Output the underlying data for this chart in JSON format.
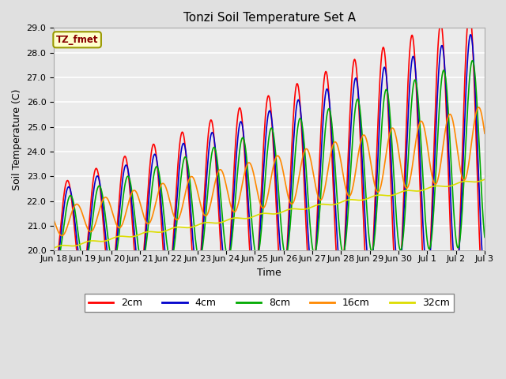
{
  "title": "Tonzi Soil Temperature Set A",
  "xlabel": "Time",
  "ylabel": "Soil Temperature (C)",
  "ylim": [
    20.0,
    29.0
  ],
  "yticks": [
    20.0,
    21.0,
    22.0,
    23.0,
    24.0,
    25.0,
    26.0,
    27.0,
    28.0,
    29.0
  ],
  "xtick_labels": [
    "Jun 18",
    "Jun 19",
    "Jun 20",
    "Jun 21",
    "Jun 22",
    "Jun 23",
    "Jun 24",
    "Jun 25",
    "Jun 26",
    "Jun 27",
    "Jun 28",
    "Jun 29",
    "Jun 30",
    "Jul 1",
    "Jul 2",
    "Jul 3"
  ],
  "colors": {
    "2cm": "#FF0000",
    "4cm": "#0000CC",
    "8cm": "#00AA00",
    "16cm": "#FF8800",
    "32cm": "#DDDD00"
  },
  "legend_label": "TZ_fmet",
  "legend_box_facecolor": "#FFFFCC",
  "legend_box_edgecolor": "#999900",
  "fig_facecolor": "#E0E0E0",
  "plot_facecolor": "#EBEBEB",
  "grid_color": "#FFFFFF",
  "n_points": 720
}
